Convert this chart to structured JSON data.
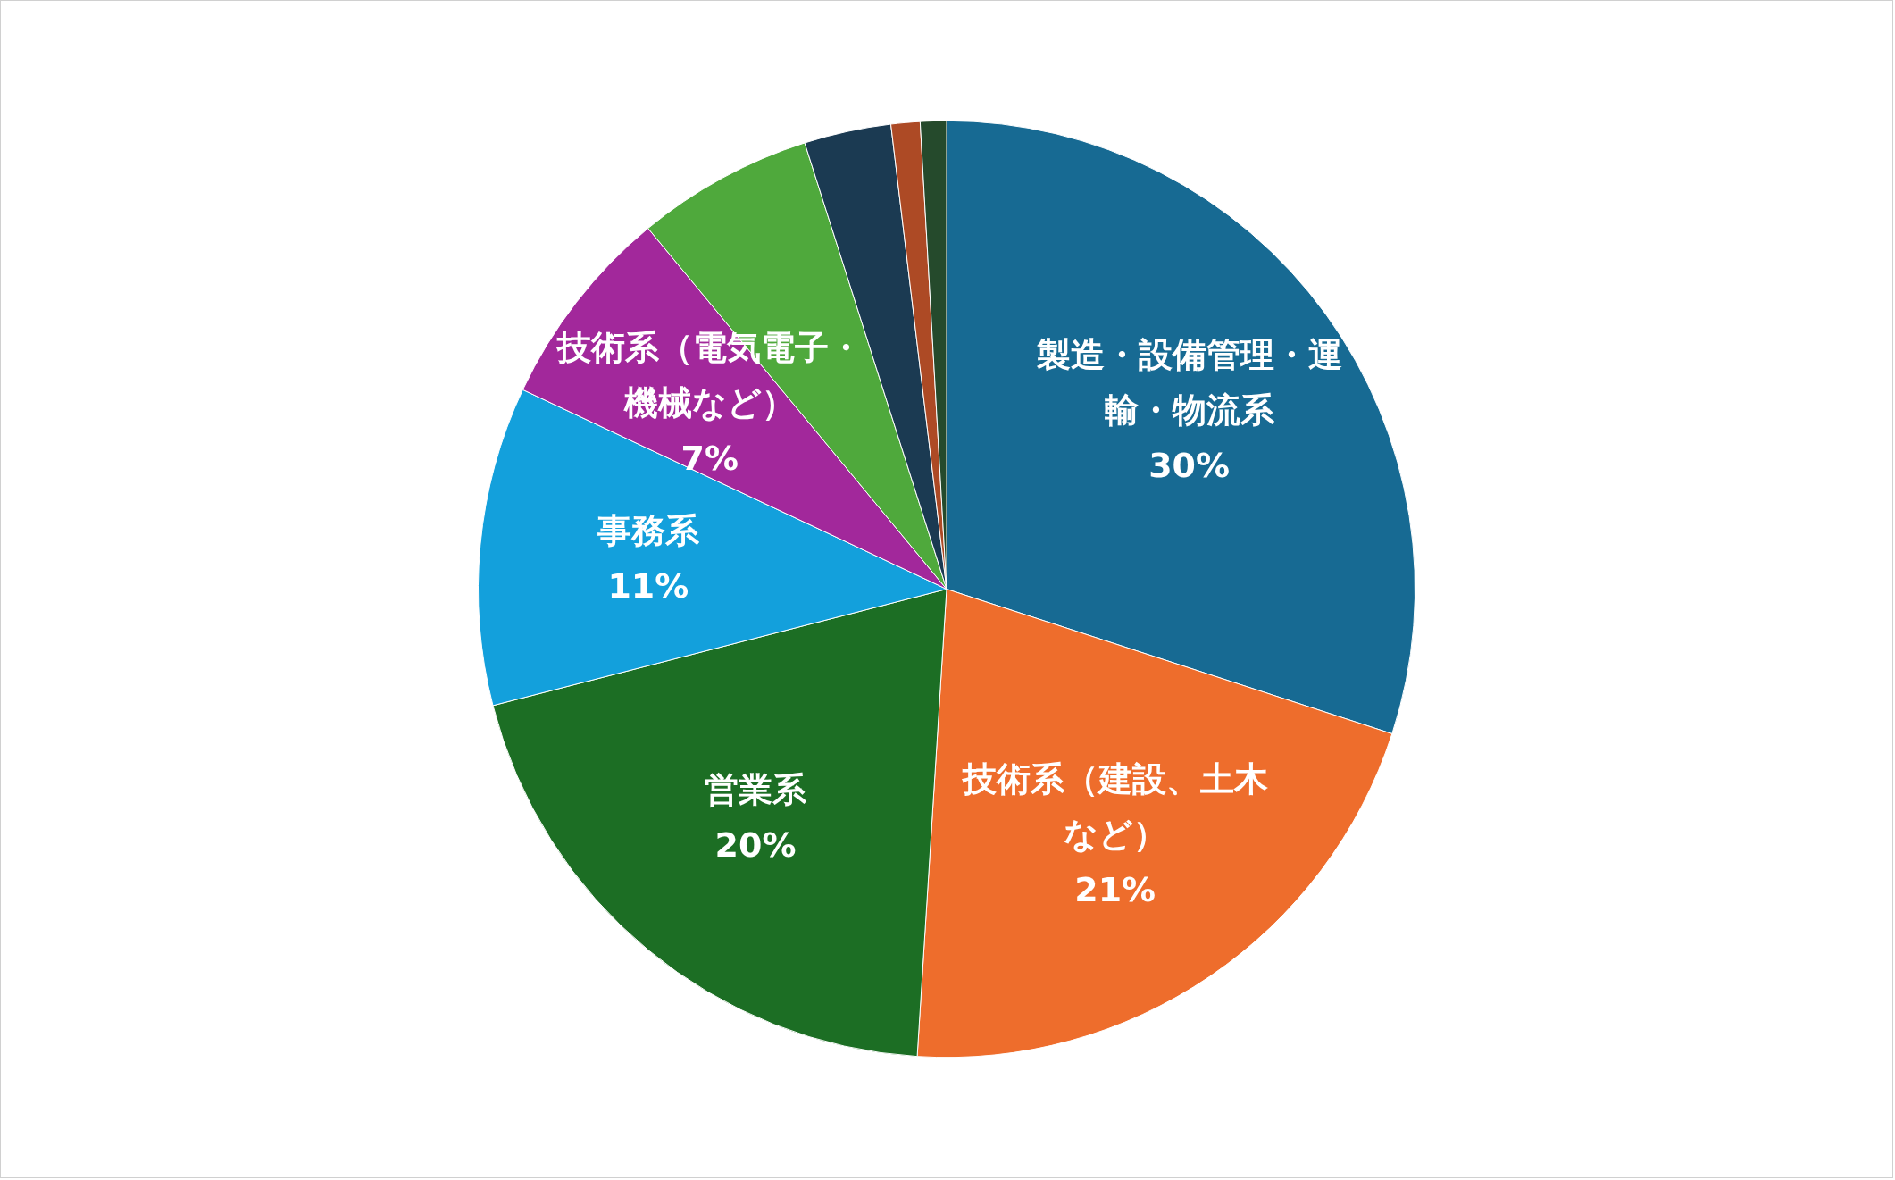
{
  "chart_data": {
    "type": "pie",
    "categories": [
      "製造・設備管理・運輸・物流系",
      "技術系（建設、土木など）",
      "営業系",
      "事務系",
      "技術系（電気電子・機械など）",
      null,
      null,
      null,
      null
    ],
    "values": [
      30,
      21,
      20,
      11,
      7,
      6.1,
      3,
      1,
      0.9
    ],
    "value_labels": [
      "30%",
      "21%",
      "20%",
      "11%",
      "7%",
      null,
      null,
      null,
      null
    ],
    "colors": [
      "#176a93",
      "#ee6d2c",
      "#1c6e24",
      "#13a0dc",
      "#a2289b",
      "#4fa93c",
      "#1b3a52",
      "#ad4a25",
      "#254a2c"
    ],
    "legend": false
  }
}
